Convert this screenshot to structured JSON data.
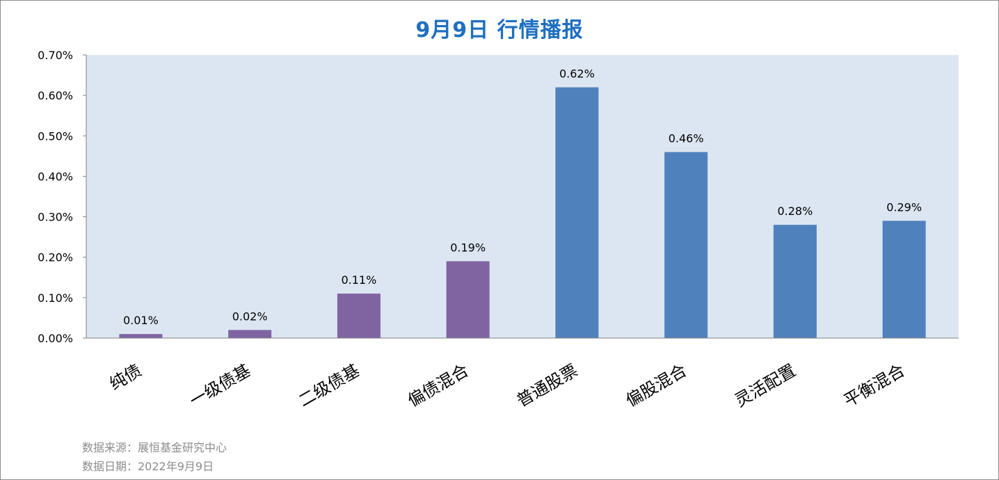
{
  "chart_data": {
    "type": "bar",
    "title": "9月9日  行情播报",
    "categories": [
      "纯债",
      "一级债基",
      "二级债基",
      "偏债混合",
      "普通股票",
      "偏股混合",
      "灵活配置",
      "平衡混合"
    ],
    "values": [
      0.01,
      0.02,
      0.11,
      0.19,
      0.62,
      0.46,
      0.28,
      0.29
    ],
    "data_labels": [
      "0.01%",
      "0.02%",
      "0.11%",
      "0.19%",
      "0.62%",
      "0.46%",
      "0.28%",
      "0.29%"
    ],
    "bar_colors": [
      "#8064a2",
      "#8064a2",
      "#8064a2",
      "#8064a2",
      "#4f81bd",
      "#4f81bd",
      "#4f81bd",
      "#4f81bd"
    ],
    "ylim": [
      0,
      0.7
    ],
    "yticks": [
      0,
      0.1,
      0.2,
      0.3,
      0.4,
      0.5,
      0.6,
      0.7
    ],
    "ytick_labels": [
      "0.00%",
      "0.10%",
      "0.20%",
      "0.30%",
      "0.40%",
      "0.50%",
      "0.60%",
      "0.70%"
    ],
    "xlabel": "",
    "ylabel": "",
    "plot_background": "#dce6f2",
    "grid": false,
    "legend": false
  },
  "footer": {
    "source": "数据来源：展恒基金研究中心",
    "date": "数据日期：2022年9月9日"
  },
  "colors": {
    "title": "#1f6fc0",
    "footer_text": "#8c8c8c"
  }
}
